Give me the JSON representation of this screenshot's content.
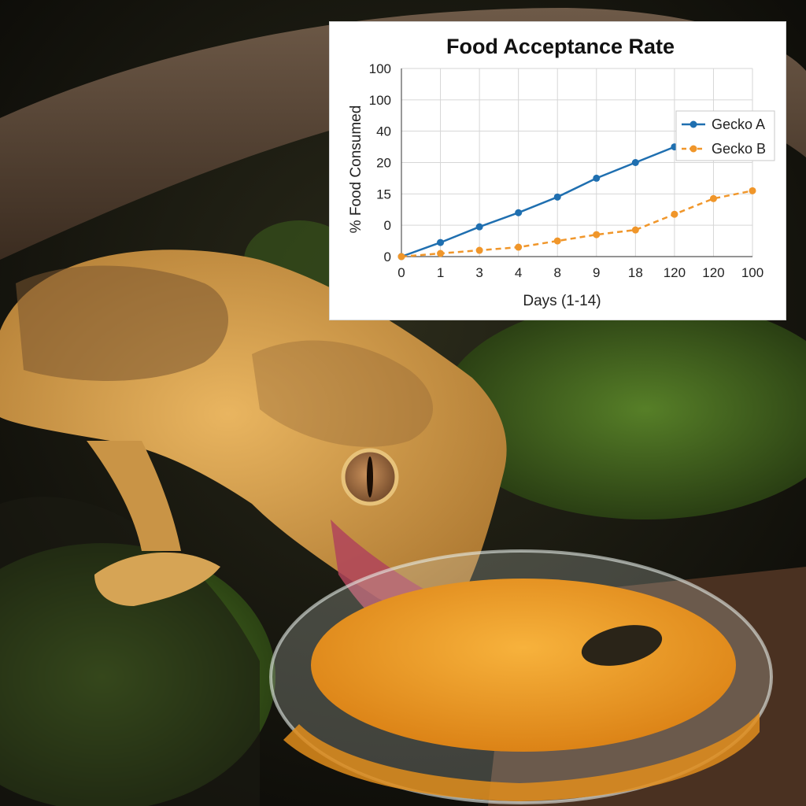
{
  "colors": {
    "series_a": "#1f6fb0",
    "series_b": "#f0962a",
    "grid": "#d6d6d6",
    "axis": "#555555"
  },
  "chart_data": {
    "type": "line",
    "title": "Food Acceptance Rate",
    "xlabel": "Days (1-14)",
    "ylabel": "% Food Consumed",
    "x_tick_labels": [
      "0",
      "1",
      "3",
      "4",
      "8",
      "9",
      "18",
      "120",
      "120",
      "100"
    ],
    "y_tick_labels": [
      "0",
      "0",
      "15",
      "20",
      "40",
      "100",
      "100"
    ],
    "grid": true,
    "legend_position": "top-right",
    "series": [
      {
        "name": "Gecko A",
        "line_style": "solid",
        "marker": "circle",
        "values": [
          0,
          0.45,
          0.95,
          1.4,
          1.9,
          2.5,
          3.0,
          3.5,
          4.15,
          4.55
        ]
      },
      {
        "name": "Gecko B",
        "line_style": "dashed",
        "marker": "circle",
        "values": [
          0,
          0.1,
          0.2,
          0.3,
          0.5,
          0.7,
          0.85,
          1.35,
          1.85,
          2.1
        ]
      }
    ]
  }
}
